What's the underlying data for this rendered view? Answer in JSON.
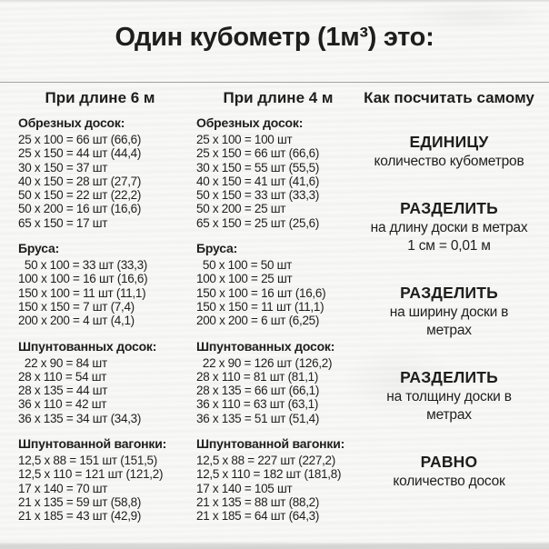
{
  "title": "Один кубометр (1м³) это:",
  "columns": [
    {
      "header": "При длине 6 м",
      "sections": [
        {
          "title": "Обрезных досок:",
          "rows": [
            "25 x 100 = 66 шт (66,6)",
            "25 x 150 = 44 шт (44,4)",
            "30 x 150 = 37 шт",
            "40 x 150 = 28 шт (27,7)",
            "50 x 150 = 22 шт (22,2)",
            "50 x 200 = 16 шт (16,6)",
            "65 x 150 = 17 шт"
          ]
        },
        {
          "title": "Бруса:",
          "rows": [
            "  50 x 100 = 33 шт (33,3)",
            "100 x 100 = 16 шт (16,6)",
            "150 x 100 = 11 шт (11,1)",
            "150 x 150 = 7 шт (7,4)",
            "200 x 200 = 4 шт (4,1)"
          ]
        },
        {
          "title": "Шпунтованных досок:",
          "rows": [
            "  22 x 90 = 84 шт",
            "28 x 110 = 54 шт",
            "28 x 135 = 44 шт",
            "36 x 110 = 42 шт",
            "36 x 135 = 34 шт (34,3)"
          ]
        },
        {
          "title": "Шпунтованной вагонки:",
          "rows": [
            "12,5 x 88 = 151 шт (151,5)",
            "12,5 x 110 = 121 шт (121,2)",
            "17 x 140 = 70 шт",
            "21 x 135 = 59 шт (58,8)",
            "21 x 185 = 43 шт (42,9)"
          ]
        }
      ]
    },
    {
      "header": "При длине 4 м",
      "sections": [
        {
          "title": "Обрезных досок:",
          "rows": [
            "25 x 100 = 100 шт",
            "25 x 150 = 66 шт (66,6)",
            "30 x 150 = 55 шт (55,5)",
            "40 x 150 = 41 шт (41,6)",
            "50 x 150 = 33 шт (33,3)",
            "50 x 200 = 25 шт",
            "65 x 150 = 25 шт (25,6)"
          ]
        },
        {
          "title": "Бруса:",
          "rows": [
            "  50 x 100 = 50 шт",
            "100 x 100 = 25 шт",
            "150 x 100 = 16 шт (16,6)",
            "150 x 150 = 11 шт (11,1)",
            "200 x 200 = 6 шт (6,25)"
          ]
        },
        {
          "title": "Шпунтованных досок:",
          "rows": [
            "  22 x 90 = 126 шт (126,2)",
            "28 x 110 = 81 шт (81,1)",
            "28 x 135 = 66 шт (66,1)",
            "36 x 110 = 63 шт (63,1)",
            "36 x 135 = 51 шт (51,4)"
          ]
        },
        {
          "title": "Шпунтованной вагонки:",
          "rows": [
            "12,5 x 88 = 227 шт (227,2)",
            "12,5 x 110 = 182 шт (181,8)",
            "17 x 140 = 105 шт",
            "21 x 135 = 88 шт (88,2)",
            "21 x 185 = 64 шт (64,3)"
          ]
        }
      ]
    }
  ],
  "howto": {
    "header": "Как посчитать самому",
    "steps": [
      {
        "keyword": "ЕДИНИЦУ",
        "lines": [
          "количество кубометров"
        ]
      },
      {
        "keyword": "РАЗДЕЛИТЬ",
        "lines": [
          "на длину доски в метрах",
          "1 см = 0,01 м"
        ]
      },
      {
        "keyword": "РАЗДЕЛИТЬ",
        "lines": [
          "на ширину доски в",
          "метрах"
        ]
      },
      {
        "keyword": "РАЗДЕЛИТЬ",
        "lines": [
          "на толщину доски в",
          "метрах"
        ]
      },
      {
        "keyword": "РАВНО",
        "lines": [
          "количество досок"
        ]
      }
    ]
  },
  "colors": {
    "text": "#1e1e1e",
    "background_wood": "#f6f6f4",
    "divider": "#a2a2a0"
  }
}
